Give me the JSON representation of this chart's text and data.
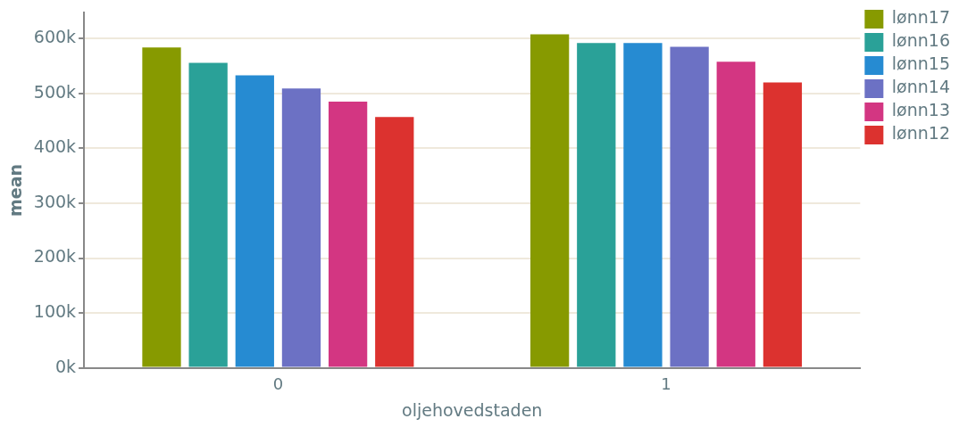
{
  "chart_data": {
    "type": "bar",
    "xlabel": "oljehovedstaden",
    "ylabel": "mean",
    "categories": [
      "0",
      "1"
    ],
    "series": [
      {
        "name": "lønn17",
        "color": "#879a00",
        "values": [
          584000,
          608000
        ]
      },
      {
        "name": "lønn16",
        "color": "#2aa198",
        "values": [
          556000,
          592000
        ]
      },
      {
        "name": "lønn15",
        "color": "#268bd2",
        "values": [
          533000,
          592000
        ]
      },
      {
        "name": "lønn14",
        "color": "#6c71c4",
        "values": [
          509000,
          585000
        ]
      },
      {
        "name": "lønn13",
        "color": "#d33682",
        "values": [
          485000,
          558000
        ]
      },
      {
        "name": "lønn12",
        "color": "#dc322f",
        "values": [
          457000,
          520000
        ]
      }
    ],
    "ylim": [
      0,
      647000
    ],
    "yticks": [
      {
        "value": 0,
        "label": "0k"
      },
      {
        "value": 100000,
        "label": "100k"
      },
      {
        "value": 200000,
        "label": "200k"
      },
      {
        "value": 300000,
        "label": "300k"
      },
      {
        "value": 400000,
        "label": "400k"
      },
      {
        "value": 500000,
        "label": "500k"
      },
      {
        "value": 600000,
        "label": "600k"
      }
    ],
    "grid": "y",
    "legend": "top right"
  }
}
